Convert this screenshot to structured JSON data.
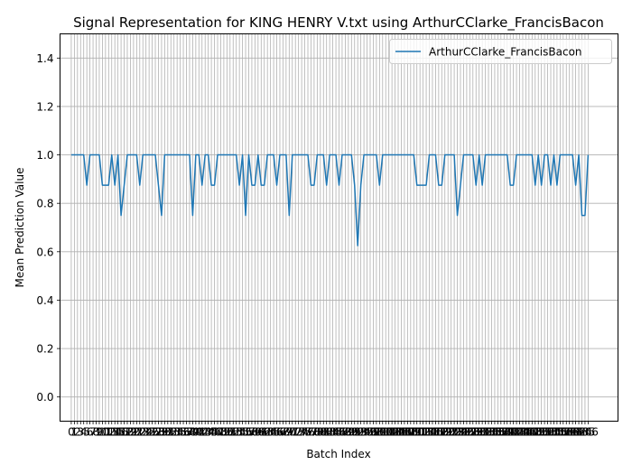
{
  "chart_data": {
    "type": "line",
    "title": "Signal Representation for KING HENRY V.txt using ArthurCClarke_FrancisBacon",
    "xlabel": "Batch Index",
    "ylabel": "Mean Prediction Value",
    "xlim": [
      -3.6,
      175.6
    ],
    "ylim": [
      -0.1,
      1.5
    ],
    "yticks": [
      0.0,
      0.2,
      0.4,
      0.6,
      0.8,
      1.0,
      1.2,
      1.4
    ],
    "ytick_labels": [
      "0.0",
      "0.2",
      "0.4",
      "0.6",
      "0.8",
      "1.0",
      "1.2",
      "1.4"
    ],
    "grid": true,
    "legend_position": "top-right",
    "series": [
      {
        "name": "ArthurCClarke_FrancisBacon",
        "color": "#1f77b4",
        "y": [
          1,
          1,
          1,
          1,
          1,
          0.875,
          1,
          1,
          1,
          1,
          0.875,
          0.875,
          0.875,
          1,
          0.875,
          1,
          0.75,
          0.875,
          1,
          1,
          1,
          1,
          0.875,
          1,
          1,
          1,
          1,
          1,
          0.875,
          0.75,
          1,
          1,
          1,
          1,
          1,
          1,
          1,
          1,
          1,
          0.75,
          1,
          1,
          0.875,
          1,
          1,
          0.875,
          0.875,
          1,
          1,
          1,
          1,
          1,
          1,
          1,
          0.875,
          1,
          0.75,
          1,
          0.875,
          0.875,
          1,
          0.875,
          0.875,
          1,
          1,
          1,
          0.875,
          1,
          1,
          1,
          0.75,
          1,
          1,
          1,
          1,
          1,
          1,
          0.875,
          0.875,
          1,
          1,
          1,
          0.875,
          1,
          1,
          1,
          0.875,
          1,
          1,
          1,
          1,
          0.875,
          0.625,
          0.875,
          1,
          1,
          1,
          1,
          1,
          0.875,
          1,
          1,
          1,
          1,
          1,
          1,
          1,
          1,
          1,
          1,
          1,
          0.875,
          0.875,
          0.875,
          0.875,
          1,
          1,
          1,
          0.875,
          0.875,
          1,
          1,
          1,
          1,
          0.75,
          0.875,
          1,
          1,
          1,
          1,
          0.875,
          1,
          0.875,
          1,
          1,
          1,
          1,
          1,
          1,
          1,
          1,
          0.875,
          0.875,
          1,
          1,
          1,
          1,
          1,
          1,
          0.875,
          1,
          0.875,
          1,
          1,
          0.875,
          1,
          0.875,
          1,
          1,
          1,
          1,
          1,
          0.875,
          1,
          0.75,
          0.75,
          1
        ]
      }
    ]
  }
}
